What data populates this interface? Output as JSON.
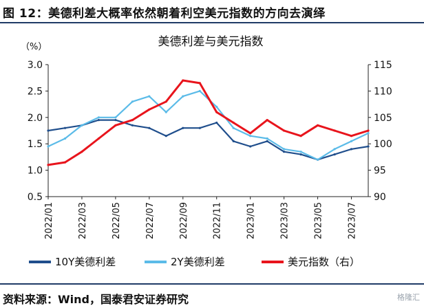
{
  "figure": {
    "title": "图 12：美德利差大概率依然朝着利空美元指数的方向去演绎",
    "source": "资料来源：Wind，国泰君安证券研究",
    "watermark": "格隆汇"
  },
  "chart_data": {
    "type": "line",
    "title": "美德利差与美元指数",
    "left_axis": {
      "unit": "（%）",
      "range": [
        0.5,
        3.0
      ],
      "ticks": [
        "3.0",
        "2.5",
        "2.0",
        "1.5",
        "1.0",
        "0.5"
      ]
    },
    "right_axis": {
      "range": [
        90,
        115
      ],
      "ticks": [
        "115",
        "110",
        "105",
        "100",
        "95",
        "90"
      ]
    },
    "x_ticks": [
      "2022/01",
      "2022/03",
      "2022/05",
      "2022/07",
      "2022/09",
      "2022/11",
      "2023/01",
      "2023/03",
      "2023/05",
      "2023/07"
    ],
    "x_range": [
      "2022-01",
      "2023-08"
    ],
    "series": [
      {
        "name": "10Y美德利差",
        "axis": "left",
        "color": "#1f4e8c",
        "x": [
          "2022-01",
          "2022-02",
          "2022-03",
          "2022-04",
          "2022-05",
          "2022-06",
          "2022-07",
          "2022-08",
          "2022-09",
          "2022-10",
          "2022-11",
          "2022-12",
          "2023-01",
          "2023-02",
          "2023-03",
          "2023-04",
          "2023-05",
          "2023-06",
          "2023-07",
          "2023-08"
        ],
        "values": [
          1.75,
          1.8,
          1.85,
          1.95,
          1.95,
          1.85,
          1.8,
          1.65,
          1.8,
          1.8,
          1.9,
          1.55,
          1.45,
          1.55,
          1.35,
          1.3,
          1.2,
          1.3,
          1.4,
          1.45
        ]
      },
      {
        "name": "2Y美德利差",
        "axis": "left",
        "color": "#5bbbe8",
        "x": [
          "2022-01",
          "2022-02",
          "2022-03",
          "2022-04",
          "2022-05",
          "2022-06",
          "2022-07",
          "2022-08",
          "2022-09",
          "2022-10",
          "2022-11",
          "2022-12",
          "2023-01",
          "2023-02",
          "2023-03",
          "2023-04",
          "2023-05",
          "2023-06",
          "2023-07",
          "2023-08"
        ],
        "values": [
          1.45,
          1.6,
          1.85,
          2.0,
          2.0,
          2.3,
          2.4,
          2.1,
          2.4,
          2.5,
          2.2,
          1.8,
          1.65,
          1.6,
          1.4,
          1.35,
          1.2,
          1.4,
          1.55,
          1.7
        ]
      },
      {
        "name": "美元指数（右）",
        "axis": "right",
        "color": "#e8141c",
        "x": [
          "2022-01",
          "2022-02",
          "2022-03",
          "2022-04",
          "2022-05",
          "2022-06",
          "2022-07",
          "2022-08",
          "2022-09",
          "2022-10",
          "2022-11",
          "2022-12",
          "2023-01",
          "2023-02",
          "2023-03",
          "2023-04",
          "2023-05",
          "2023-06",
          "2023-07",
          "2023-08"
        ],
        "values": [
          96,
          96.5,
          98.5,
          101,
          103.5,
          104.5,
          106.5,
          108,
          112,
          111.5,
          106,
          104,
          102,
          104.5,
          102.5,
          101.5,
          103.5,
          102.5,
          101.5,
          102.5
        ]
      }
    ],
    "legend_position": "bottom"
  }
}
